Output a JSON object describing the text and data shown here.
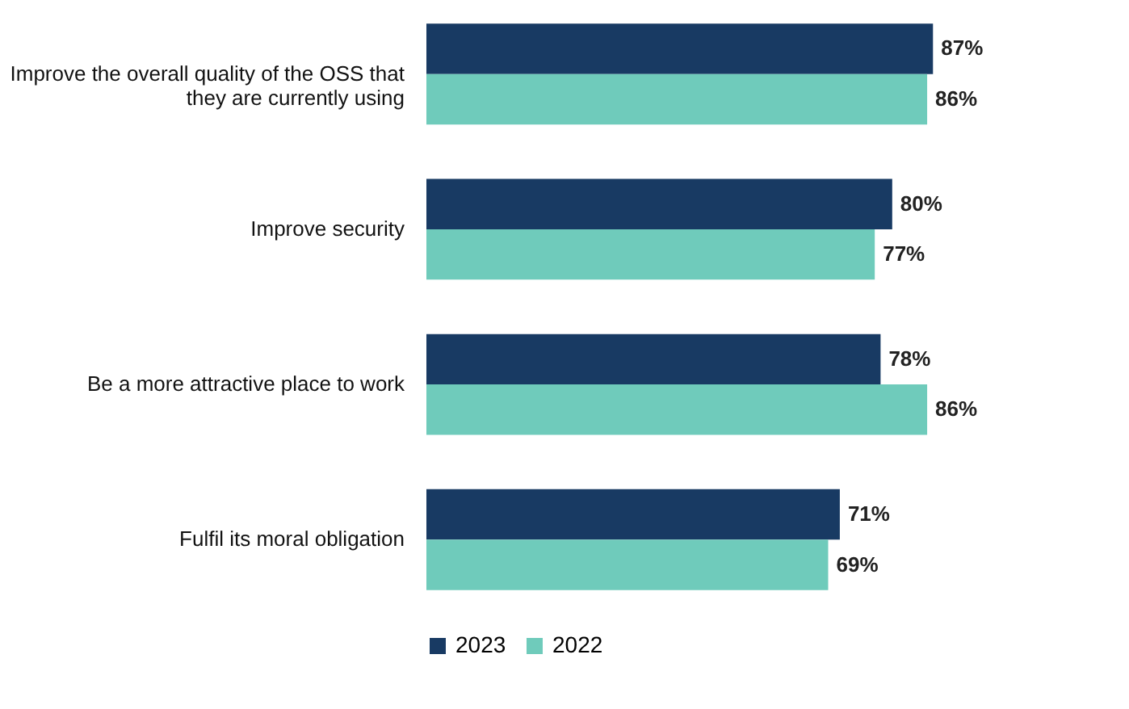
{
  "chart_data": {
    "type": "bar",
    "orientation": "horizontal",
    "categories": [
      "Improve the overall quality of the OSS that they are currently using",
      "Improve security",
      "Be a more attractive place to work",
      "Fulfil its moral obligation"
    ],
    "series": [
      {
        "name": "2023",
        "color": "#183a63",
        "values": [
          87,
          80,
          78,
          71
        ],
        "value_labels": [
          "87%",
          "80%",
          "78%",
          "71%"
        ]
      },
      {
        "name": "2022",
        "color": "#6fcbbb",
        "values": [
          86,
          77,
          86,
          69
        ],
        "value_labels": [
          "86%",
          "77%",
          "86%",
          "69%"
        ]
      }
    ],
    "legend": "bottom",
    "grid": false
  }
}
